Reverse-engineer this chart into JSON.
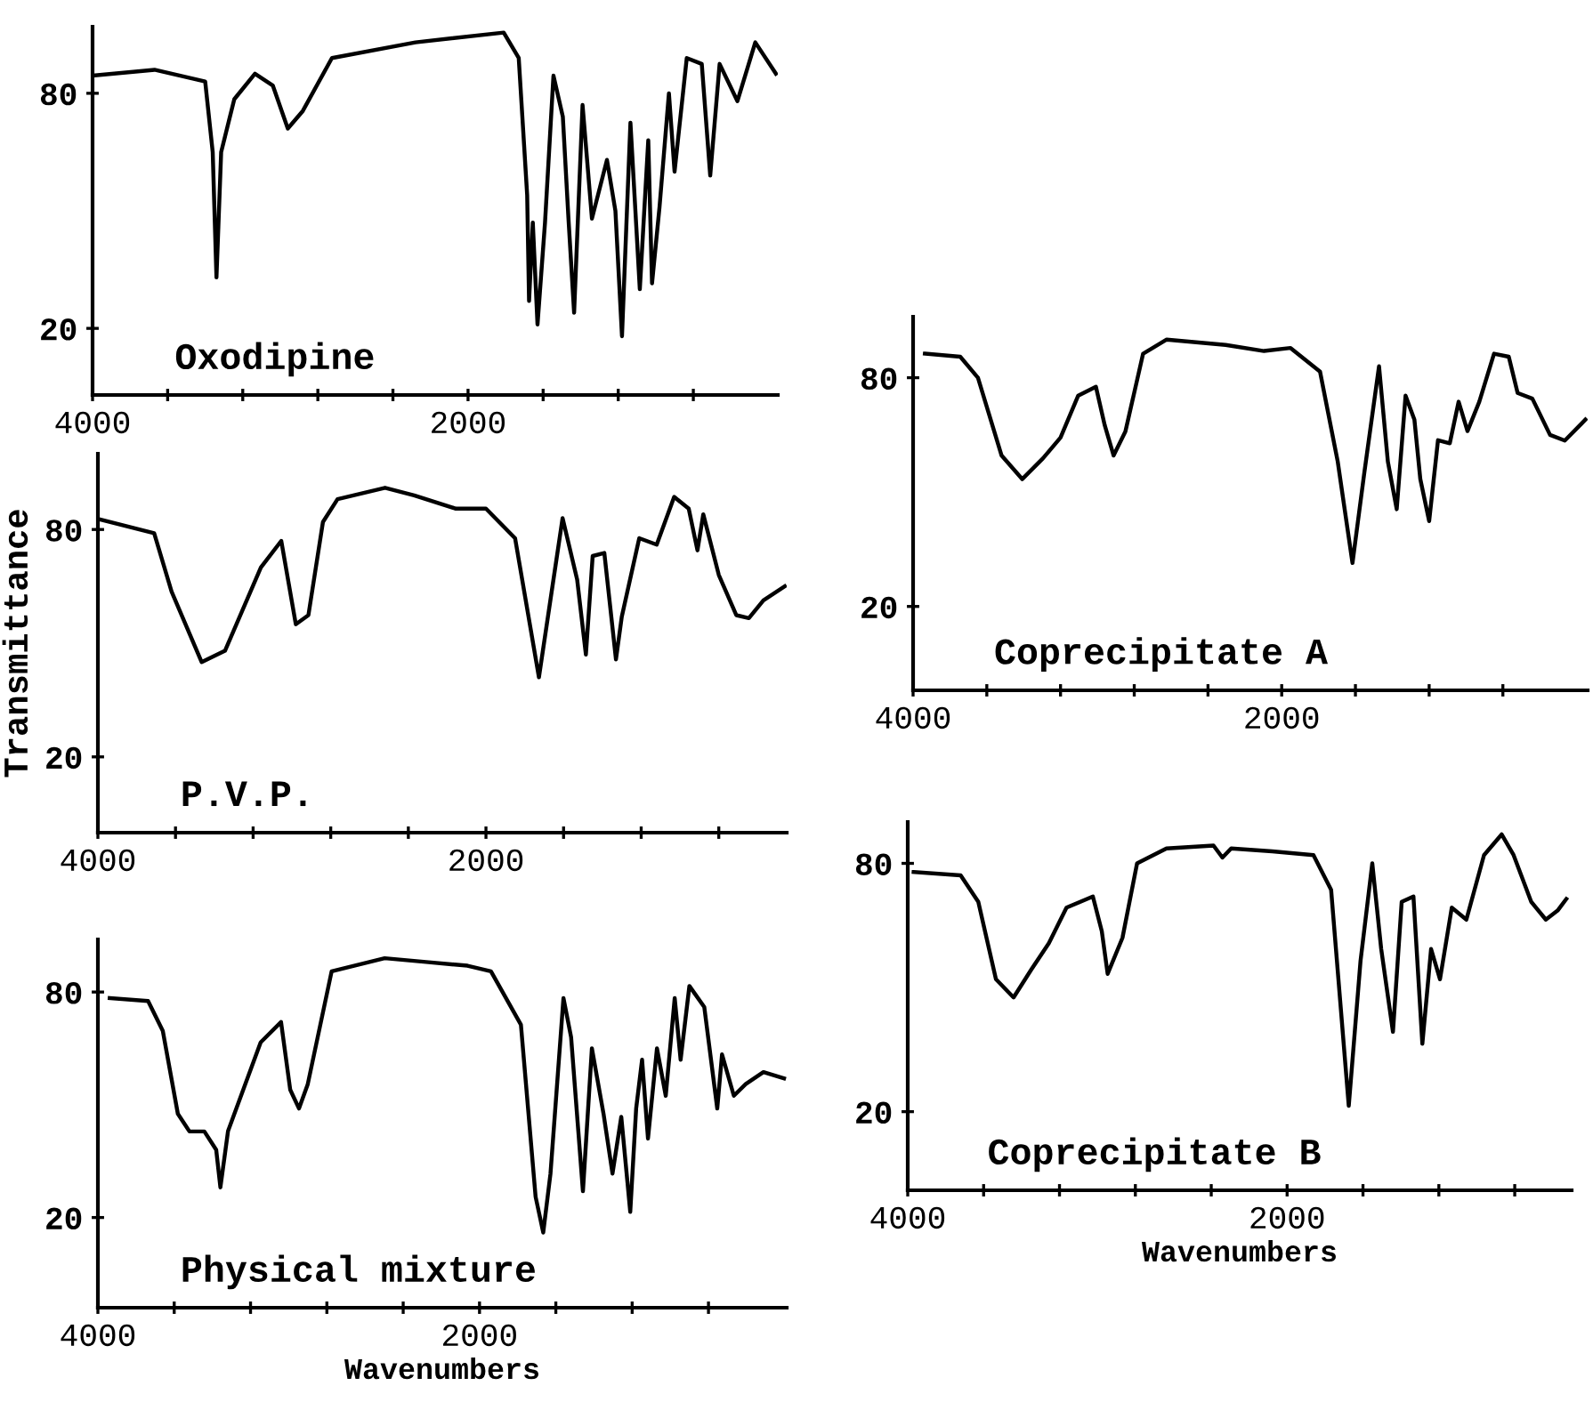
{
  "chart_data": [
    {
      "type": "line",
      "title": "Oxodipine",
      "xlim": [
        4000,
        350
      ],
      "ylim": [
        3,
        97
      ],
      "xticks": [
        4000,
        {
          "value": 3600,
          "label": null
        },
        {
          "value": 3200,
          "label": null
        },
        {
          "value": 2800,
          "label": null
        },
        {
          "value": 2400,
          "label": null
        },
        2000,
        {
          "value": 1600,
          "label": null
        },
        {
          "value": 1200,
          "label": null
        },
        {
          "value": 800,
          "label": null
        }
      ],
      "yticks": [
        20,
        80
      ],
      "series": [
        {
          "color": "#000000",
          "x": [
            4000,
            3670,
            3400,
            3360,
            3340,
            3315,
            3245,
            3135,
            3040,
            2960,
            2880,
            2725,
            2280,
            1810,
            1730,
            1685,
            1675,
            1655,
            1630,
            1590,
            1545,
            1495,
            1465,
            1435,
            1390,
            1340,
            1260,
            1215,
            1180,
            1135,
            1085,
            1040,
            1020,
            980,
            930,
            900,
            835,
            755,
            710,
            660,
            565,
            470,
            360
          ],
          "values": [
            84.5,
            86,
            83,
            65,
            33,
            65,
            78.5,
            85,
            82,
            71,
            75.5,
            89,
            93,
            95.5,
            89,
            54,
            27,
            47,
            21,
            47,
            84.5,
            74,
            48,
            24,
            77,
            48,
            63,
            50,
            18,
            72.5,
            30,
            68,
            31.5,
            51,
            80,
            60,
            89,
            87.5,
            59,
            87.5,
            78,
            93,
            85
          ]
        }
      ]
    },
    {
      "type": "line",
      "title": "P.V.P.",
      "ylabel": "Transmittance",
      "xlim": [
        4000,
        450
      ],
      "ylim": [
        0,
        100
      ],
      "xticks": [
        4000,
        {
          "value": 3600,
          "label": null
        },
        {
          "value": 3200,
          "label": null
        },
        {
          "value": 2800,
          "label": null
        },
        {
          "value": 2400,
          "label": null
        },
        2000,
        {
          "value": 1600,
          "label": null
        },
        {
          "value": 1200,
          "label": null
        },
        {
          "value": 800,
          "label": null
        }
      ],
      "yticks": [
        20,
        80
      ],
      "series": [
        {
          "color": "#000000",
          "x": [
            3985,
            3710,
            3620,
            3465,
            3345,
            3160,
            3055,
            2980,
            2915,
            2840,
            2765,
            2520,
            2370,
            2155,
            2000,
            1850,
            1727,
            1605,
            1530,
            1485,
            1450,
            1390,
            1330,
            1300,
            1210,
            1120,
            1030,
            955,
            910,
            880,
            800,
            710,
            645,
            570,
            460
          ],
          "values": [
            82.6,
            79,
            63.6,
            45,
            48,
            70,
            77,
            55,
            57.4,
            82,
            88,
            91,
            89,
            85.5,
            85.5,
            77.7,
            41,
            83,
            66.8,
            47,
            73,
            73.8,
            45.7,
            57,
            77.7,
            76,
            88.6,
            85.5,
            74.5,
            84,
            68,
            57.4,
            56.6,
            61.3,
            65
          ]
        }
      ]
    },
    {
      "type": "line",
      "title": "Physical mixture",
      "xlabel": "Wavenumbers",
      "xlim": [
        4000,
        390
      ],
      "ylim": [
        -4,
        94
      ],
      "xticks": [
        4000,
        {
          "value": 3600,
          "label": null
        },
        {
          "value": 3200,
          "label": null
        },
        {
          "value": 2800,
          "label": null
        },
        {
          "value": 2400,
          "label": null
        },
        2000,
        {
          "value": 1600,
          "label": null
        },
        {
          "value": 1200,
          "label": null
        },
        {
          "value": 800,
          "label": null
        }
      ],
      "yticks": [
        20,
        80
      ],
      "series": [
        {
          "color": "#000000",
          "x": [
            3938,
            3737,
            3660,
            3581,
            3520,
            3442,
            3380,
            3358,
            3318,
            3147,
            3040,
            2992,
            2946,
            2900,
            2775,
            2497,
            2280,
            2063,
            1940,
            1783,
            1706,
            1666,
            1628,
            1560,
            1520,
            1458,
            1411,
            1350,
            1303,
            1257,
            1210,
            1179,
            1148,
            1117,
            1070,
            1024,
            977,
            946,
            900,
            822,
            754,
            729,
            667,
            605,
            512,
            404
          ],
          "values": [
            78.4,
            77.6,
            69.7,
            47.6,
            42.9,
            42.9,
            38,
            28,
            43,
            66.6,
            72,
            54,
            49,
            55.5,
            85.5,
            89,
            88,
            87,
            85.5,
            71.3,
            25.5,
            16,
            31.7,
            78.4,
            68,
            27,
            65,
            47.6,
            31.7,
            46.8,
            21.5,
            49,
            62,
            41,
            65,
            52.4,
            78.4,
            62,
            81.6,
            76,
            49,
            63.4,
            52.4,
            55.5,
            58.7,
            57
          ]
        }
      ]
    },
    {
      "type": "line",
      "title": "Coprecipitate A",
      "xlim": [
        4000,
        340
      ],
      "ylim": [
        -2,
        96
      ],
      "xticks": [
        4000,
        {
          "value": 3600,
          "label": null
        },
        {
          "value": 3200,
          "label": null
        },
        {
          "value": 2800,
          "label": null
        },
        {
          "value": 2400,
          "label": null
        },
        2000,
        {
          "value": 1600,
          "label": null
        },
        {
          "value": 1200,
          "label": null
        },
        {
          "value": 800,
          "label": null
        }
      ],
      "yticks": [
        20,
        80
      ],
      "series": [
        {
          "color": "#000000",
          "x": [
            3936,
            3744,
            3648,
            3520,
            3408,
            3296,
            3200,
            3104,
            3008,
            2960,
            2912,
            2848,
            2752,
            2624,
            2304,
            2096,
            1952,
            1792,
            1696,
            1616,
            1552,
            1472,
            1424,
            1376,
            1328,
            1280,
            1248,
            1200,
            1152,
            1088,
            1040,
            992,
            928,
            848,
            768,
            720,
            640,
            544,
            464,
            352
          ],
          "values": [
            86.3,
            85.5,
            80,
            59.6,
            53.4,
            58.8,
            64.3,
            75.3,
            77.6,
            67.5,
            59.6,
            65.9,
            86.3,
            90,
            88.6,
            87,
            87.8,
            81.6,
            58,
            31.4,
            55,
            83,
            58,
            45.5,
            75.3,
            69,
            53.4,
            42.4,
            63.6,
            62.8,
            73.7,
            66,
            73.7,
            86.3,
            85.5,
            76,
            74.5,
            65,
            63.5,
            69
          ]
        }
      ]
    },
    {
      "type": "line",
      "title": "Coprecipitate B",
      "xlabel": "Wavenumbers",
      "xlim": [
        4000,
        500
      ],
      "ylim": [
        1,
        90
      ],
      "xticks": [
        4000,
        {
          "value": 3600,
          "label": null
        },
        {
          "value": 3200,
          "label": null
        },
        {
          "value": 2800,
          "label": null
        },
        {
          "value": 2400,
          "label": null
        },
        2000,
        {
          "value": 1600,
          "label": null
        },
        {
          "value": 1200,
          "label": null
        },
        {
          "value": 800,
          "label": null
        }
      ],
      "yticks": [
        20,
        80
      ],
      "series": [
        {
          "color": "#000000",
          "x": [
            3969,
            3721,
            3628,
            3535,
            3442,
            3349,
            3256,
            3163,
            3024,
            2977,
            2946,
            2868,
            2791,
            2636,
            2388,
            2341,
            2295,
            2078,
            1861,
            1768,
            1675,
            1613,
            1551,
            1504,
            1442,
            1396,
            1334,
            1287,
            1241,
            1194,
            1132,
            1055,
            962,
            869,
            806,
            713,
            636,
            574,
            528
          ],
          "values": [
            77.9,
            77.1,
            70.7,
            52,
            47.6,
            54.3,
            60.7,
            69.3,
            72,
            63.6,
            53.3,
            62,
            80,
            83.6,
            84.3,
            81.4,
            83.6,
            82.9,
            82,
            73.6,
            21.4,
            56.4,
            80,
            59.3,
            39.3,
            70.7,
            72,
            36.4,
            59.3,
            52,
            69.3,
            66.4,
            82,
            87,
            82,
            70.7,
            66.4,
            68.6,
            71.4
          ]
        }
      ]
    }
  ]
}
